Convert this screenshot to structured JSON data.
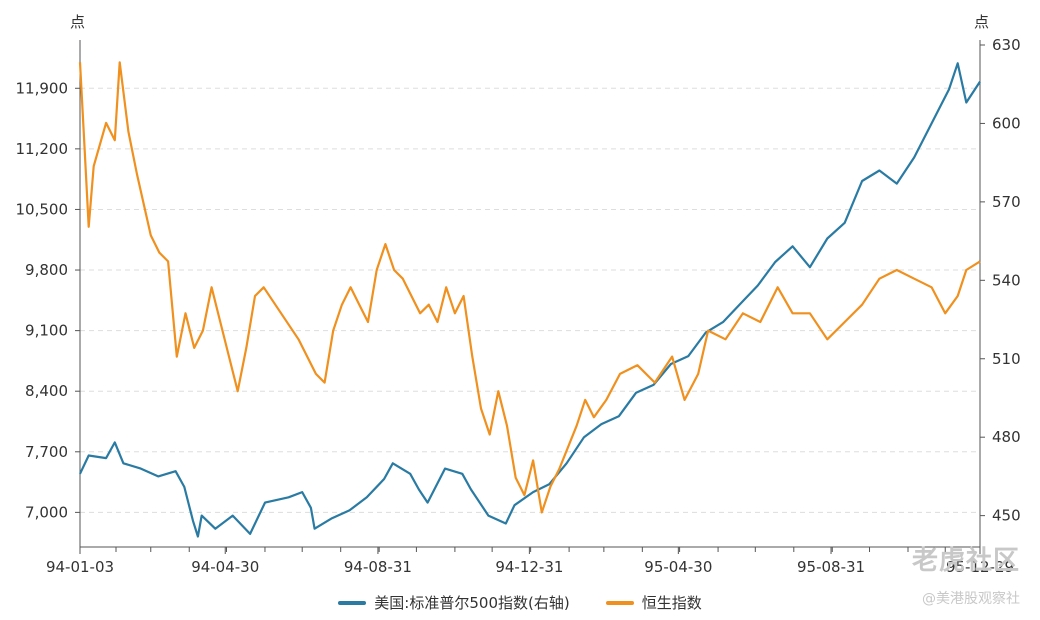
{
  "chart_data": {
    "type": "line",
    "x_start": "1994-01-03",
    "x_end": "1995-12-29",
    "x_tick_labels": [
      "94-01-03",
      "94-04-30",
      "94-08-31",
      "94-12-31",
      "95-04-30",
      "95-08-31",
      "95-12-29"
    ],
    "x_tick_dates": [
      "1994-01-03",
      "1994-04-30",
      "1994-08-31",
      "1994-12-31",
      "1995-04-30",
      "1995-08-31",
      "1995-12-29"
    ],
    "y_left": {
      "unit": "点",
      "range": [
        6600,
        12400
      ],
      "ticks": [
        7000,
        7700,
        8400,
        9100,
        9800,
        10500,
        11200,
        11900
      ],
      "tick_labels": [
        "7,000",
        "7,700",
        "8,400",
        "9,100",
        "9,800",
        "10,500",
        "11,200",
        "11,900"
      ]
    },
    "y_right": {
      "unit": "点",
      "range": [
        438,
        630
      ],
      "ticks": [
        450,
        480,
        510,
        540,
        570,
        600,
        630
      ],
      "tick_labels": [
        "450",
        "480",
        "510",
        "540",
        "570",
        "600",
        "630"
      ]
    },
    "grid": true,
    "legend_position": "bottom",
    "series": [
      {
        "name": "美国:标准普尔500指数(右轴)",
        "axis": "right",
        "color": "#2a7ba3",
        "points": [
          [
            "1994-01-03",
            466
          ],
          [
            "1994-01-10",
            473
          ],
          [
            "1994-01-24",
            472
          ],
          [
            "1994-01-31",
            478
          ],
          [
            "1994-02-07",
            470
          ],
          [
            "1994-02-21",
            468
          ],
          [
            "1994-03-07",
            465
          ],
          [
            "1994-03-21",
            467
          ],
          [
            "1994-03-28",
            461
          ],
          [
            "1994-04-04",
            448
          ],
          [
            "1994-04-08",
            442
          ],
          [
            "1994-04-11",
            450
          ],
          [
            "1994-04-22",
            445
          ],
          [
            "1994-05-06",
            450
          ],
          [
            "1994-05-20",
            443
          ],
          [
            "1994-06-01",
            455
          ],
          [
            "1994-06-20",
            457
          ],
          [
            "1994-07-01",
            459
          ],
          [
            "1994-07-08",
            453
          ],
          [
            "1994-07-11",
            445
          ],
          [
            "1994-07-25",
            449
          ],
          [
            "1994-08-08",
            452
          ],
          [
            "1994-08-22",
            457
          ],
          [
            "1994-09-05",
            464
          ],
          [
            "1994-09-12",
            470
          ],
          [
            "1994-09-26",
            466
          ],
          [
            "1994-10-03",
            460
          ],
          [
            "1994-10-10",
            455
          ],
          [
            "1994-10-24",
            468
          ],
          [
            "1994-11-07",
            466
          ],
          [
            "1994-11-14",
            460
          ],
          [
            "1994-11-28",
            450
          ],
          [
            "1994-12-12",
            447
          ],
          [
            "1994-12-19",
            454
          ],
          [
            "1995-01-03",
            459
          ],
          [
            "1995-01-16",
            462
          ],
          [
            "1995-01-30",
            470
          ],
          [
            "1995-02-13",
            480
          ],
          [
            "1995-02-27",
            485
          ],
          [
            "1995-03-13",
            488
          ],
          [
            "1995-03-27",
            497
          ],
          [
            "1995-04-10",
            500
          ],
          [
            "1995-04-24",
            508
          ],
          [
            "1995-05-08",
            511
          ],
          [
            "1995-05-22",
            520
          ],
          [
            "1995-06-05",
            524
          ],
          [
            "1995-06-19",
            531
          ],
          [
            "1995-07-03",
            538
          ],
          [
            "1995-07-17",
            547
          ],
          [
            "1995-07-31",
            553
          ],
          [
            "1995-08-14",
            545
          ],
          [
            "1995-08-28",
            556
          ],
          [
            "1995-09-11",
            562
          ],
          [
            "1995-09-25",
            578
          ],
          [
            "1995-10-09",
            582
          ],
          [
            "1995-10-23",
            577
          ],
          [
            "1995-11-06",
            587
          ],
          [
            "1995-11-20",
            600
          ],
          [
            "1995-12-04",
            613
          ],
          [
            "1995-12-11",
            623
          ],
          [
            "1995-12-18",
            608
          ],
          [
            "1995-12-29",
            616
          ]
        ]
      },
      {
        "name": "恒生指数",
        "axis": "left",
        "color": "#f0901e",
        "points": [
          [
            "1994-01-03",
            12200
          ],
          [
            "1994-01-06",
            11400
          ],
          [
            "1994-01-10",
            10300
          ],
          [
            "1994-01-14",
            11000
          ],
          [
            "1994-01-24",
            11500
          ],
          [
            "1994-01-31",
            11300
          ],
          [
            "1994-02-04",
            12200
          ],
          [
            "1994-02-11",
            11400
          ],
          [
            "1994-02-18",
            10900
          ],
          [
            "1994-03-01",
            10200
          ],
          [
            "1994-03-08",
            10000
          ],
          [
            "1994-03-15",
            9900
          ],
          [
            "1994-03-22",
            8800
          ],
          [
            "1994-03-29",
            9300
          ],
          [
            "1994-04-05",
            8900
          ],
          [
            "1994-04-12",
            9100
          ],
          [
            "1994-04-19",
            9600
          ],
          [
            "1994-04-26",
            9200
          ],
          [
            "1994-05-03",
            8800
          ],
          [
            "1994-05-10",
            8400
          ],
          [
            "1994-05-17",
            8900
          ],
          [
            "1994-05-24",
            9500
          ],
          [
            "1994-05-31",
            9600
          ],
          [
            "1994-06-14",
            9300
          ],
          [
            "1994-06-28",
            9000
          ],
          [
            "1994-07-12",
            8600
          ],
          [
            "1994-07-19",
            8500
          ],
          [
            "1994-07-26",
            9100
          ],
          [
            "1994-08-02",
            9400
          ],
          [
            "1994-08-09",
            9600
          ],
          [
            "1994-08-16",
            9400
          ],
          [
            "1994-08-23",
            9200
          ],
          [
            "1994-08-30",
            9800
          ],
          [
            "1994-09-06",
            10100
          ],
          [
            "1994-09-13",
            9800
          ],
          [
            "1994-09-20",
            9700
          ],
          [
            "1994-10-04",
            9300
          ],
          [
            "1994-10-11",
            9400
          ],
          [
            "1994-10-18",
            9200
          ],
          [
            "1994-10-25",
            9600
          ],
          [
            "1994-11-01",
            9300
          ],
          [
            "1994-11-08",
            9500
          ],
          [
            "1994-11-15",
            8800
          ],
          [
            "1994-11-22",
            8200
          ],
          [
            "1994-11-29",
            7900
          ],
          [
            "1994-12-06",
            8400
          ],
          [
            "1994-12-13",
            8000
          ],
          [
            "1994-12-20",
            7400
          ],
          [
            "1994-12-27",
            7200
          ],
          [
            "1995-01-03",
            7600
          ],
          [
            "1995-01-10",
            7000
          ],
          [
            "1995-01-17",
            7300
          ],
          [
            "1995-01-24",
            7500
          ],
          [
            "1995-02-07",
            8000
          ],
          [
            "1995-02-14",
            8300
          ],
          [
            "1995-02-21",
            8100
          ],
          [
            "1995-03-03",
            8300
          ],
          [
            "1995-03-14",
            8600
          ],
          [
            "1995-03-28",
            8700
          ],
          [
            "1995-04-11",
            8500
          ],
          [
            "1995-04-25",
            8800
          ],
          [
            "1995-05-05",
            8300
          ],
          [
            "1995-05-16",
            8600
          ],
          [
            "1995-05-24",
            9100
          ],
          [
            "1995-06-07",
            9000
          ],
          [
            "1995-06-21",
            9300
          ],
          [
            "1995-07-05",
            9200
          ],
          [
            "1995-07-19",
            9600
          ],
          [
            "1995-07-31",
            9300
          ],
          [
            "1995-08-14",
            9300
          ],
          [
            "1995-08-28",
            9000
          ],
          [
            "1995-09-11",
            9200
          ],
          [
            "1995-09-25",
            9400
          ],
          [
            "1995-10-09",
            9700
          ],
          [
            "1995-10-23",
            9800
          ],
          [
            "1995-11-06",
            9700
          ],
          [
            "1995-11-20",
            9600
          ],
          [
            "1995-12-01",
            9300
          ],
          [
            "1995-12-11",
            9500
          ],
          [
            "1995-12-18",
            9800
          ],
          [
            "1995-12-29",
            9900
          ]
        ]
      }
    ]
  },
  "watermark": {
    "top": "老虎社区",
    "bottom": "@美港股观察社"
  }
}
